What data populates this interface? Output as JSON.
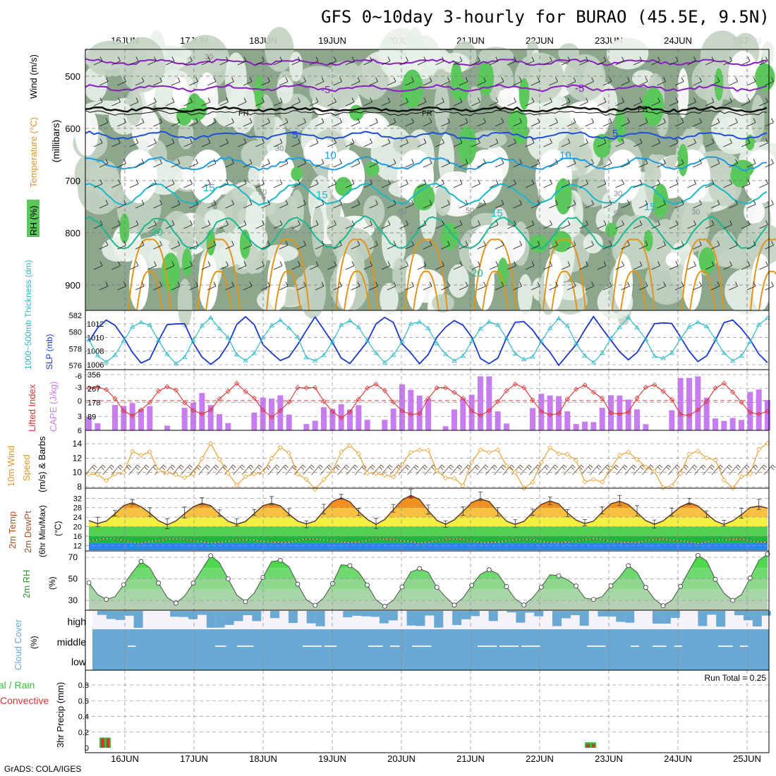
{
  "title": "GFS 0~10day 3-hourly for BURAO (45.5E, 9.5N)",
  "footer": "GrADS: COLA/IGES",
  "dates": [
    "16JUN",
    "17JUN",
    "18JUN",
    "19JUN",
    "20JUN",
    "21JUN",
    "22JUN",
    "23JUN",
    "24JUN",
    "25JUN"
  ],
  "colors": {
    "rh_dark": "#8ca78c",
    "rh_mid": "#c3d3c3",
    "rh_light": "#e8f1e8",
    "rh_green": "#5ac85a",
    "temp_purple": "#8a1fbf",
    "temp_blue": "#1e4fd6",
    "temp_lightblue": "#1e9ce0",
    "temp_teal": "#19b8c8",
    "temp_green": "#19b890",
    "temp_orange": "#e0951a",
    "slp": "#1a37c8",
    "thickness": "#2bbac8",
    "lifted": "#e03030",
    "cape": "#c77cf0",
    "wind": "#e8a030",
    "rh2m": "#32d232",
    "cloud": "#6aa9d4",
    "precip_total": "#35c035",
    "precip_conv": "#e03030"
  },
  "panels": {
    "upper": {
      "y_label": "(millibars)",
      "legend": {
        "rh": "RH (%)",
        "temp": "Temperature (°C)",
        "wind": "Wind (m/s)"
      },
      "yticks": [
        500,
        600,
        700,
        800,
        900
      ],
      "contour_labels": {
        "t_minus5": "-5",
        "t_fr": "FR",
        "t5": "5",
        "t10": "10",
        "t15": "15",
        "t20": "20",
        "rh30": "30",
        "rh50": "50"
      }
    },
    "pressure": {
      "label_thickness": "1000~500mb Thickness (dm)",
      "label_slp": "SLP (mb)",
      "left_ticks": [
        582,
        580,
        578,
        576
      ],
      "right_ticks": [
        1012,
        1010,
        1008,
        1006
      ]
    },
    "stability": {
      "label_lifted": "Lifted Index",
      "label_cape": "CAPE (J/kg)",
      "left_ticks": [
        "-6",
        "-3",
        "0",
        "3",
        "6"
      ],
      "right_ticks": [
        "356",
        "267",
        "178",
        "89"
      ]
    },
    "wind10m": {
      "label_a": "10m Wind",
      "label_b": "Speed",
      "label_c": "(m/s) & Barbs",
      "ticks": [
        14,
        12,
        10,
        8
      ]
    },
    "temp2m": {
      "label_a": "2m Temp",
      "label_b": "2m DewPt",
      "label_c": "(6hr Min/Max)",
      "label_d": "(°C)",
      "ticks": [
        32,
        28,
        24,
        20,
        16,
        12
      ]
    },
    "rh2m": {
      "label_a": "2m RH",
      "label_b": "(%)",
      "ticks": [
        70,
        50,
        30
      ]
    },
    "cloud": {
      "label_a": "Cloud Cover",
      "label_b": "(%)",
      "levels": [
        "high",
        "middle",
        "low"
      ]
    },
    "precip": {
      "label_a": "tal / Rain",
      "label_b": "Convective",
      "label_c": "3hr Precip (mm)",
      "ticks": [
        "0.8",
        "0.6",
        "0.4",
        "0.2",
        "0"
      ],
      "run_total": "Run Total = 0.25"
    }
  },
  "chart_data": {
    "type": "meteogram",
    "time_steps_3h": 79,
    "x_dates": [
      "16JUN",
      "17JUN",
      "18JUN",
      "19JUN",
      "20JUN",
      "21JUN",
      "22JUN",
      "23JUN",
      "24JUN",
      "25JUN"
    ],
    "slp_mb_daily_min_max": [
      [
        1006.5,
        1012.8
      ],
      [
        1007.0,
        1012.5
      ],
      [
        1007.5,
        1013.0
      ],
      [
        1006.5,
        1012.0
      ],
      [
        1007.0,
        1012.3
      ],
      [
        1006.0,
        1012.5
      ],
      [
        1006.8,
        1012.2
      ],
      [
        1007.0,
        1012.4
      ],
      [
        1006.0,
        1012.8
      ],
      [
        1008.0,
        1011.5
      ]
    ],
    "thickness_dm_range": [
      576,
      582
    ],
    "cape_jkg_max": 356,
    "lifted_index_range": [
      -4,
      4
    ],
    "wind10m_ms_range": [
      8,
      15
    ],
    "temp2m_c_daily_min_max": [
      [
        21,
        30
      ],
      [
        21,
        30
      ],
      [
        21,
        30
      ],
      [
        21,
        32
      ],
      [
        21,
        33
      ],
      [
        21,
        32
      ],
      [
        21,
        31
      ],
      [
        21,
        31
      ],
      [
        21,
        30
      ],
      [
        21,
        29
      ]
    ],
    "dewpoint2m_c": 14,
    "rh2m_pct_daily_min_max": [
      [
        30,
        60
      ],
      [
        27,
        65
      ],
      [
        30,
        72
      ],
      [
        25,
        68
      ],
      [
        25,
        62
      ],
      [
        27,
        60
      ],
      [
        27,
        58
      ],
      [
        30,
        54
      ],
      [
        25,
        62
      ],
      [
        30,
        72
      ]
    ],
    "precip_3h_mm": [
      {
        "date": "16JUN",
        "total": 0.13,
        "convective": 0.12
      },
      {
        "date": "22JUN",
        "total": 0.07,
        "convective": 0.05
      }
    ],
    "run_total_mm": 0.25
  }
}
